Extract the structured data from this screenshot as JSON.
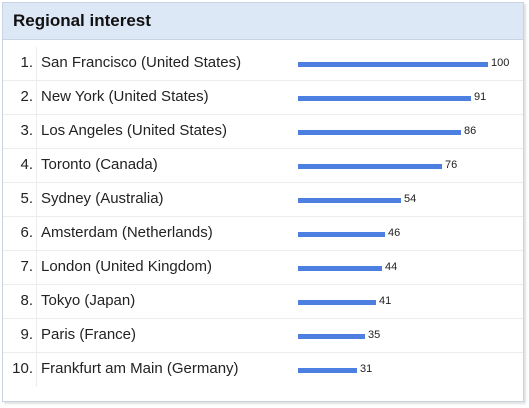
{
  "header": {
    "title": "Regional interest"
  },
  "bar_color": "#4d7fe0",
  "rows": [
    {
      "rank": "1.",
      "region": "San Francisco (United States)",
      "value": "100",
      "level": 100
    },
    {
      "rank": "2.",
      "region": "New York (United States)",
      "value": "91",
      "level": 91
    },
    {
      "rank": "3.",
      "region": "Los Angeles (United States)",
      "value": "86",
      "level": 86
    },
    {
      "rank": "4.",
      "region": "Toronto (Canada)",
      "value": "76",
      "level": 76
    },
    {
      "rank": "5.",
      "region": "Sydney (Australia)",
      "value": "54",
      "level": 54
    },
    {
      "rank": "6.",
      "region": "Amsterdam (Netherlands)",
      "value": "46",
      "level": 46
    },
    {
      "rank": "7.",
      "region": "London (United Kingdom)",
      "value": "44",
      "level": 44
    },
    {
      "rank": "8.",
      "region": "Tokyo (Japan)",
      "value": "41",
      "level": 41
    },
    {
      "rank": "9.",
      "region": "Paris (France)",
      "value": "35",
      "level": 35
    },
    {
      "rank": "10.",
      "region": "Frankfurt am Main (Germany)",
      "value": "31",
      "level": 31
    }
  ]
}
